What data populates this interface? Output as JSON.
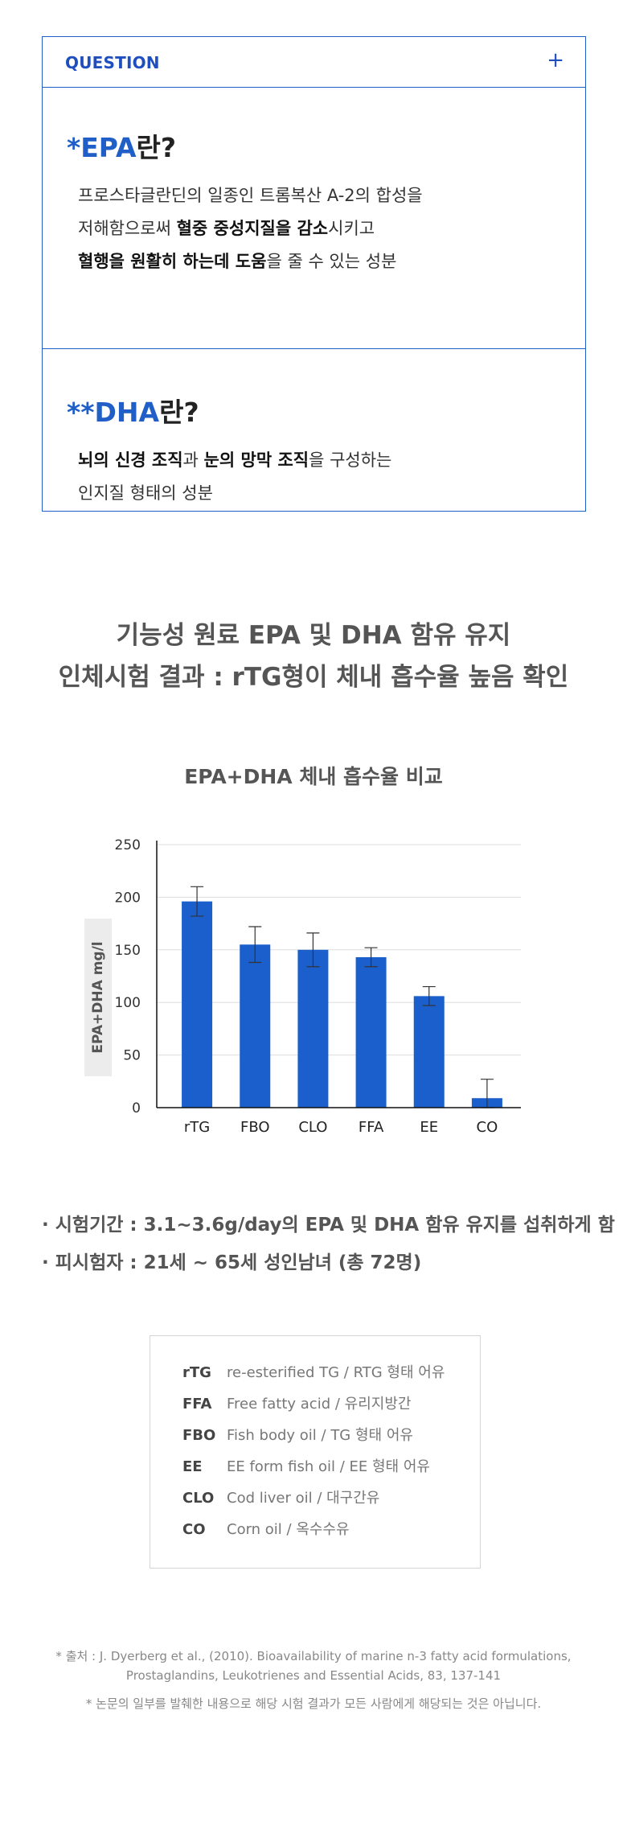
{
  "question": {
    "label": "QUESTION",
    "toggle": "+",
    "epa": {
      "title_prefix": "*EPA",
      "title_suffix": "란?",
      "line1": "프로스타글란딘의 일종인 트롬복산 A-2의 합성을",
      "line2_a": "저해함으로써 ",
      "line2_b": "혈중 중성지질을 감소",
      "line2_c": "시키고",
      "line3_a": "혈행을 원활히 하는데 도움",
      "line3_b": "을 줄 수 있는 성분"
    },
    "dha": {
      "title_prefix": "**DHA",
      "title_suffix": "란?",
      "line1_a": "뇌의 신경 조직",
      "line1_b": "과 ",
      "line1_c": "눈의 망막 조직",
      "line1_d": "을 구성하는",
      "line2": "인지질 형태의 성분"
    }
  },
  "section": {
    "heading_line1": "기능성 원료 EPA 및 DHA 함유 유지",
    "heading_line2": "인체시험 결과 : rTG형이 체내 흡수율 높음 확인"
  },
  "chart_data": {
    "type": "bar",
    "title": "EPA+DHA 체내 흡수율 비교",
    "ylabel": "EPA+DHA mg/l",
    "xlabel": "",
    "categories": [
      "rTG",
      "FBO",
      "CLO",
      "FFA",
      "EE",
      "CO"
    ],
    "values": [
      196,
      155,
      150,
      143,
      106,
      9
    ],
    "error": [
      14,
      17,
      16,
      9,
      9,
      18
    ],
    "ylim": [
      0,
      250
    ],
    "yticks": [
      0,
      50,
      100,
      150,
      200,
      250
    ],
    "grid": true,
    "bar_color": "#1a5fcc"
  },
  "notes": {
    "line1": "· 시험기간 : 3.1~3.6g/day의 EPA 및 DHA 함유 유지를 섭취하게 함",
    "line2": "· 피시험자 : 21세 ~ 65세 성인남녀 (총 72명)"
  },
  "legend": [
    {
      "abbr": "rTG",
      "desc": "re-esterified TG / RTG 형태 어유"
    },
    {
      "abbr": "FFA",
      "desc": "Free fatty acid / 유리지방간"
    },
    {
      "abbr": "FBO",
      "desc": "Fish body oil / TG 형태 어유"
    },
    {
      "abbr": "EE",
      "desc": "EE form fish oil / EE 형태 어유"
    },
    {
      "abbr": "CLO",
      "desc": "Cod liver oil / 대구간유"
    },
    {
      "abbr": "CO",
      "desc": "Corn oil / 옥수수유"
    }
  ],
  "footer": {
    "citation_line1": "* 출처 : J. Dyerberg et al., (2010). Bioavailability of marine n-3 fatty acid formulations,",
    "citation_line2": "Prostaglandins, Leukotrienes and Essential Acids, 83, 137-141",
    "disclaimer": "* 논문의 일부를 발췌한 내용으로 해당 시험 결과가 모든 사람에게 해당되는 것은 아닙니다."
  }
}
